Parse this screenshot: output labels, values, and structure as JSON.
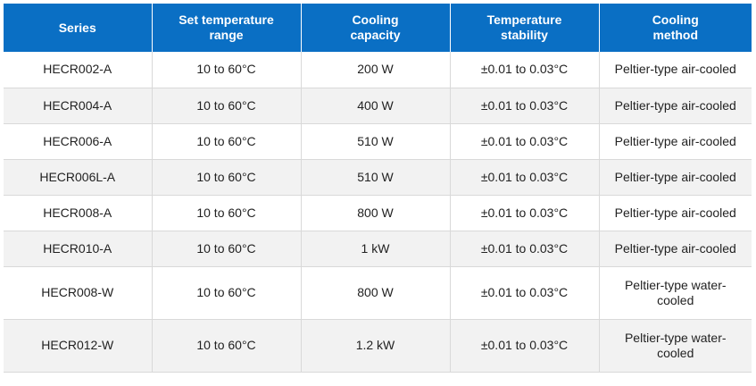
{
  "table": {
    "headers": [
      {
        "line1": "Series",
        "line2": ""
      },
      {
        "line1": "Set temperature",
        "line2": "range"
      },
      {
        "line1": "Cooling",
        "line2": "capacity"
      },
      {
        "line1": "Temperature",
        "line2": "stability"
      },
      {
        "line1": "Cooling",
        "line2": "method"
      }
    ],
    "rows": [
      {
        "series": "HECR002-A",
        "range": "10 to 60°C",
        "capacity": "200 W",
        "stability": "±0.01 to 0.03°C",
        "method": "Peltier-type air-cooled"
      },
      {
        "series": "HECR004-A",
        "range": "10 to 60°C",
        "capacity": "400 W",
        "stability": "±0.01 to 0.03°C",
        "method": "Peltier-type air-cooled"
      },
      {
        "series": "HECR006-A",
        "range": "10 to 60°C",
        "capacity": "510 W",
        "stability": "±0.01 to 0.03°C",
        "method": "Peltier-type air-cooled"
      },
      {
        "series": "HECR006L-A",
        "range": "10 to 60°C",
        "capacity": "510 W",
        "stability": "±0.01 to 0.03°C",
        "method": "Peltier-type air-cooled"
      },
      {
        "series": "HECR008-A",
        "range": "10 to 60°C",
        "capacity": "800 W",
        "stability": "±0.01 to 0.03°C",
        "method": "Peltier-type air-cooled"
      },
      {
        "series": "HECR010-A",
        "range": "10 to 60°C",
        "capacity": "1 kW",
        "stability": "±0.01 to 0.03°C",
        "method": "Peltier-type air-cooled"
      },
      {
        "series": "HECR008-W",
        "range": "10 to 60°C",
        "capacity": "800 W",
        "stability": "±0.01 to 0.03°C",
        "method": "Peltier-type water-cooled"
      },
      {
        "series": "HECR012-W",
        "range": "10 to 60°C",
        "capacity": "1.2 kW",
        "stability": "±0.01 to 0.03°C",
        "method": "Peltier-type water-cooled"
      }
    ]
  },
  "colors": {
    "header_bg": "#0a6fc4",
    "header_text": "#ffffff",
    "row_alt_bg": "#f2f2f2",
    "grid_line": "#d9d9d9"
  }
}
